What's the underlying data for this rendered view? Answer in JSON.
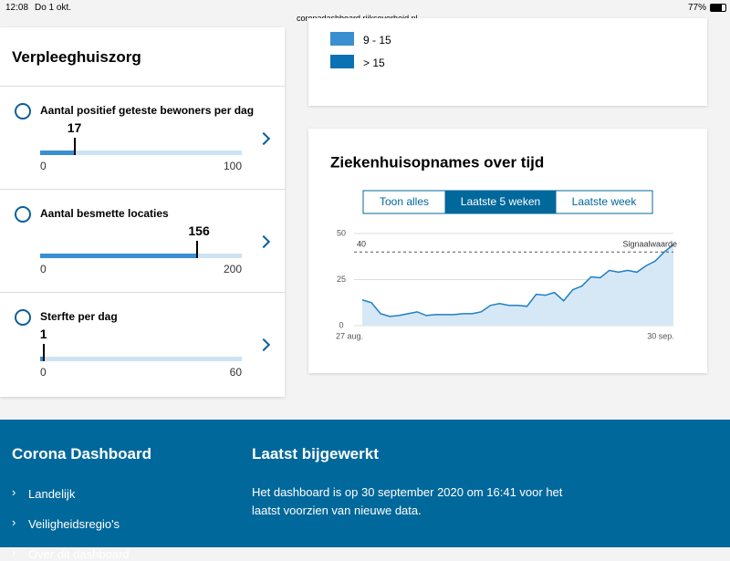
{
  "status_bar": {
    "time": "12:08",
    "date": "Do 1 okt.",
    "url": "coronadashboard.rijksoverheid.nl",
    "battery": "77%"
  },
  "nursing_panel": {
    "title": "Verpleeghuiszorg",
    "metrics": [
      {
        "label": "Aantal positief geteste bewoners per dag",
        "value": 17,
        "min": 0,
        "max": 100
      },
      {
        "label": "Aantal besmette locaties",
        "value": 156,
        "min": 0,
        "max": 200
      },
      {
        "label": "Sterfte per dag",
        "value": 1,
        "min": 0,
        "max": 60
      }
    ]
  },
  "legend": {
    "items": [
      {
        "label": "9 - 15",
        "color": "#3a8fd0"
      },
      {
        "label": "> 15",
        "color": "#0b71b5"
      }
    ]
  },
  "chart_data": {
    "type": "area",
    "title": "Ziekenhuisopnames over tijd",
    "tabs": [
      "Toon alles",
      "Laatste 5 weken",
      "Laatste week"
    ],
    "active_tab": 1,
    "categories": [
      "27 aug.",
      null,
      null,
      null,
      null,
      null,
      null,
      null,
      null,
      null,
      null,
      null,
      null,
      null,
      null,
      null,
      null,
      null,
      null,
      null,
      null,
      null,
      null,
      null,
      null,
      null,
      null,
      null,
      null,
      null,
      null,
      null,
      null,
      null,
      "30 sep."
    ],
    "values": [
      14,
      12.5,
      6.5,
      5,
      5.5,
      6.5,
      7.5,
      5.5,
      6,
      6,
      6,
      6.5,
      6.5,
      7.5,
      11,
      12,
      11,
      11,
      10.5,
      17,
      16.5,
      18,
      13.5,
      19.5,
      21.5,
      26.5,
      26,
      30,
      29,
      30,
      29,
      32.5,
      35,
      40,
      44
    ],
    "color": "#1f7fc4",
    "fill": "#d6e8f6",
    "ylim": [
      0,
      50
    ],
    "yticks": [
      0,
      25,
      50
    ],
    "grid": true,
    "threshold": {
      "value": 40,
      "label": "Signaalwaarde"
    }
  },
  "footer": {
    "title": "Corona Dashboard",
    "links": [
      "Landelijk",
      "Veiligheidsregio's",
      "Over dit dashboard"
    ],
    "updated_title": "Laatst bijgewerkt",
    "updated_text": "Het dashboard is op 30 september 2020 om 16:41 voor het laatst voorzien van nieuwe data."
  }
}
